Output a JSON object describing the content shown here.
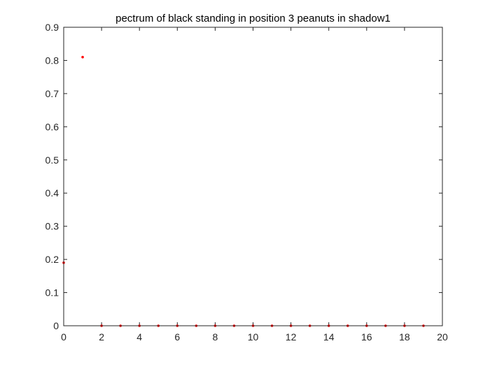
{
  "chart_data": {
    "type": "scatter",
    "title": "pectrum of black standing in position 3 peanuts in shadow1",
    "xlabel": "",
    "ylabel": "",
    "xlim": [
      0,
      20
    ],
    "ylim": [
      0,
      0.9
    ],
    "grid": false,
    "box": true,
    "x_ticks": [
      "0",
      "2",
      "4",
      "6",
      "8",
      "10",
      "12",
      "14",
      "16",
      "18",
      "20"
    ],
    "y_ticks": [
      "0",
      "0.1",
      "0.2",
      "0.3",
      "0.4",
      "0.5",
      "0.6",
      "0.7",
      "0.8",
      "0.9"
    ],
    "series": [
      {
        "color": "#ff0000",
        "marker": "dot",
        "x": [
          0,
          1,
          2,
          3,
          4,
          5,
          6,
          7,
          8,
          9,
          10,
          11,
          12,
          13,
          14,
          15,
          16,
          17,
          18,
          19
        ],
        "y": [
          0.19,
          0.81,
          0,
          0,
          0,
          0,
          0,
          0,
          0,
          0,
          0,
          0,
          0,
          0,
          0,
          0,
          0,
          0,
          0,
          0
        ]
      }
    ]
  }
}
